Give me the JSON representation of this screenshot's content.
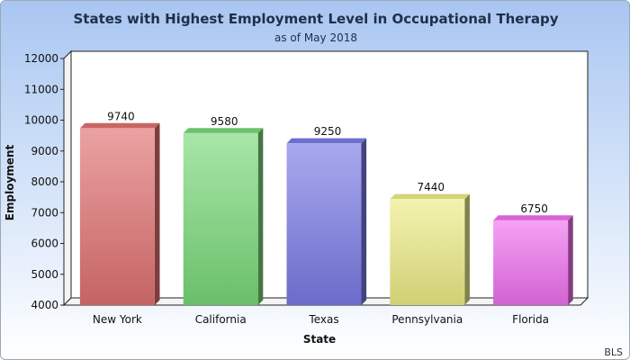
{
  "chart_data": {
    "type": "bar",
    "title": "States with Highest Employment Level in Occupational Therapy",
    "subtitle": "as of May 2018",
    "xlabel": "State",
    "ylabel": "Employment",
    "categories": [
      "New York",
      "California",
      "Texas",
      "Pennsylvania",
      "Florida"
    ],
    "values": [
      9740,
      9580,
      9250,
      7440,
      6750
    ],
    "ylim": [
      4000,
      12000
    ],
    "yticks": [
      "4000",
      "5000",
      "6000",
      "7000",
      "8000",
      "9000",
      "10000",
      "11000",
      "12000"
    ],
    "colors": [
      "#e07070",
      "#79d979",
      "#7a7ae6",
      "#ecec86",
      "#ef6fef"
    ],
    "grid": false,
    "legend": "none",
    "source": "BLS"
  }
}
